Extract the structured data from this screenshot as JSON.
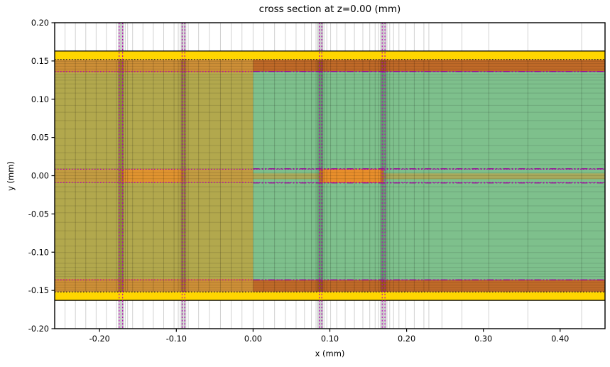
{
  "title": "cross section at z=0.00 (mm)",
  "chart_data": {
    "type": "heatmap",
    "title": "cross section at z=0.00 (mm)",
    "xlabel": "x (mm)",
    "ylabel": "y (mm)",
    "xlim": [
      -0.2585,
      0.4585
    ],
    "ylim": [
      -0.2,
      0.2
    ],
    "grid": "graded mesh lines",
    "legend": "none",
    "xticks": {
      "values": [
        -0.2,
        -0.1,
        0.0,
        0.1,
        0.2,
        0.3,
        0.4
      ],
      "labels": [
        "-0.20",
        "-0.10",
        "0.00",
        "0.10",
        "0.20",
        "0.30",
        "0.40"
      ]
    },
    "yticks": {
      "values": [
        0.2,
        0.15,
        0.1,
        0.05,
        0.0,
        -0.05,
        -0.1,
        -0.15,
        -0.2
      ],
      "labels": [
        "0.20",
        "0.15",
        "0.10",
        "0.05",
        "0.00",
        "-0.05",
        "-0.10",
        "-0.15",
        "-0.20"
      ]
    },
    "colors": {
      "yellow_layer": "#ffd600",
      "olive_dielectric": "#b2a84d",
      "green_dielectric": "#7ec08c",
      "orange_band_left": "#cd8f37",
      "orange_band_right": "#c06a28",
      "trace_orange": "#e5912d",
      "olive_sheet": "#a8a95c",
      "magenta_dotted": "#b400b4",
      "magenta_dashdot": "#990099",
      "mesh_gray": "rgba(0,0,0,0.18)",
      "mesh_h": "rgba(0,0,0,0.12)",
      "shade": "rgba(0,0,0,0.12)"
    },
    "regions": [
      {
        "name": "dielectric-left-olive",
        "x0": -0.2585,
        "x1": 0.0,
        "y0": -0.152,
        "y1": 0.152,
        "color": "#b2a84d"
      },
      {
        "name": "dielectric-right-green",
        "x0": 0.0,
        "x1": 0.4585,
        "y0": -0.152,
        "y1": 0.152,
        "color": "#7ec08c"
      },
      {
        "name": "top-band-left-orange",
        "x0": -0.2585,
        "x1": 0.0,
        "y0": 0.135,
        "y1": 0.152,
        "color": "#cd8f37"
      },
      {
        "name": "top-band-right-orange",
        "x0": 0.0,
        "x1": 0.4585,
        "y0": 0.1362,
        "y1": 0.152,
        "color": "#c06a28"
      },
      {
        "name": "bottom-band-left-orange",
        "x0": -0.2585,
        "x1": 0.0,
        "y0": -0.152,
        "y1": -0.135,
        "color": "#cd8f37"
      },
      {
        "name": "bottom-band-right-orange",
        "x0": 0.0,
        "x1": 0.4585,
        "y0": -0.152,
        "y1": -0.1362,
        "color": "#c06a28"
      },
      {
        "name": "center-band-left-tint",
        "x0": -0.2585,
        "x1": 0.0,
        "y0": -0.009,
        "y1": 0.0085,
        "color": "#c29b41"
      },
      {
        "name": "trace-left",
        "x0": -0.1722,
        "x1": -0.0907,
        "y0": -0.009,
        "y1": 0.0085,
        "color": "#e0932f"
      },
      {
        "name": "sheet-right-olive",
        "x0": 0.0,
        "x1": 0.4585,
        "y0": -0.0045,
        "y1": 0.003,
        "color": "#a8a95c"
      },
      {
        "name": "trace-right",
        "x0": 0.0862,
        "x1": 0.17,
        "y0": -0.0095,
        "y1": 0.009,
        "color": "#e88e2b"
      }
    ],
    "yellow_bands": [
      {
        "name": "yellow-layer-top",
        "x0": -0.2585,
        "x1": 0.4585,
        "y0": 0.152,
        "y1": 0.163,
        "color": "#ffd600"
      },
      {
        "name": "yellow-layer-bottom",
        "x0": -0.2585,
        "x1": 0.4585,
        "y0": -0.163,
        "y1": -0.152,
        "color": "#ffd600"
      }
    ],
    "shade_bands_x": [
      {
        "center": -0.1722,
        "width": 0.0075
      },
      {
        "center": -0.0907,
        "width": 0.006
      },
      {
        "center": 0.0878,
        "width": 0.0075
      },
      {
        "center": 0.17,
        "width": 0.0075
      }
    ],
    "mesh_x": [
      -0.245,
      -0.2315,
      -0.218,
      -0.2045,
      -0.191,
      -0.178,
      -0.1745,
      -0.1725,
      -0.1705,
      -0.1685,
      -0.1665,
      -0.1635,
      -0.157,
      -0.1435,
      -0.13,
      -0.1165,
      -0.103,
      -0.0975,
      -0.095,
      -0.093,
      -0.0915,
      -0.0895,
      -0.0875,
      -0.0845,
      -0.071,
      -0.057,
      -0.0425,
      -0.0285,
      -0.0145,
      0.0,
      0.014,
      0.028,
      0.042,
      0.056,
      0.067,
      0.076,
      0.082,
      0.0845,
      0.0865,
      0.0885,
      0.0905,
      0.0925,
      0.096,
      0.101,
      0.109,
      0.12,
      0.132,
      0.143,
      0.152,
      0.159,
      0.1635,
      0.166,
      0.168,
      0.17,
      0.172,
      0.1745,
      0.178,
      0.183,
      0.19,
      0.199,
      0.21,
      0.2225,
      0.229,
      0.246,
      0.272,
      0.307,
      0.358,
      0.428
    ],
    "mesh_y": [
      0.1495,
      0.1465,
      0.143,
      0.1395,
      0.1365,
      0.132,
      0.1285,
      0.125,
      0.12,
      0.1145,
      0.108,
      0.1005,
      0.092,
      0.083,
      0.072,
      0.061,
      0.0485,
      0.0395,
      0.03,
      0.021,
      0.0145,
      0.009,
      0.004,
      0.0,
      -0.004,
      -0.009,
      -0.0145,
      -0.021,
      -0.03,
      -0.0395,
      -0.0485,
      -0.061,
      -0.072,
      -0.083,
      -0.092,
      -0.1005,
      -0.108,
      -0.1145,
      -0.12,
      -0.125,
      -0.1285,
      -0.132,
      -0.1365,
      -0.1395,
      -0.143,
      -0.1465,
      -0.1495
    ],
    "special_h_lines": [
      {
        "name": "box-top-edge",
        "y": 0.163,
        "x0": -0.2585,
        "x1": 0.4585,
        "style": "solid",
        "color": "#000000",
        "w": 1.2
      },
      {
        "name": "box-bottom-edge",
        "y": -0.163,
        "x0": -0.2585,
        "x1": 0.4585,
        "style": "solid",
        "color": "#000000",
        "w": 1.2
      },
      {
        "name": "metal-top-edge",
        "y": 0.152,
        "x0": -0.2585,
        "x1": 0.4585,
        "style": "dotted",
        "color": "#1a1a1a",
        "w": 1.3
      },
      {
        "name": "metal-bottom-edge",
        "y": -0.152,
        "x0": -0.2585,
        "x1": 0.4585,
        "style": "dotted",
        "color": "#1a1a1a",
        "w": 1.3
      },
      {
        "name": "substrate-top-dotted",
        "y": 0.1362,
        "x0": -0.2585,
        "x1": 0.4585,
        "style": "dotted",
        "color": "#b400b4",
        "w": 1.3
      },
      {
        "name": "substrate-bot-dotted",
        "y": -0.1362,
        "x0": -0.2585,
        "x1": 0.4585,
        "style": "dotted",
        "color": "#b400b4",
        "w": 1.3
      },
      {
        "name": "substrate-top-dashdot",
        "y": 0.1362,
        "x0": 0.0,
        "x1": 0.4585,
        "style": "dashdot",
        "color": "#990099",
        "w": 1.3
      },
      {
        "name": "substrate-bot-dashdot",
        "y": -0.1362,
        "x0": 0.0,
        "x1": 0.4585,
        "style": "dashdot",
        "color": "#990099",
        "w": 1.3
      },
      {
        "name": "trace-top-dotted",
        "y": 0.0085,
        "x0": -0.2585,
        "x1": 0.4585,
        "style": "dotted",
        "color": "#b400b4",
        "w": 1.3
      },
      {
        "name": "trace-bot-dotted",
        "y": -0.009,
        "x0": -0.2585,
        "x1": 0.4585,
        "style": "dotted",
        "color": "#b400b4",
        "w": 1.3
      },
      {
        "name": "trace-top-dashdot",
        "y": 0.009,
        "x0": 0.0,
        "x1": 0.4585,
        "style": "dashdot",
        "color": "#990099",
        "w": 1.3
      },
      {
        "name": "trace-bot-dashdot",
        "y": -0.0095,
        "x0": 0.0,
        "x1": 0.4585,
        "style": "dashdot",
        "color": "#990099",
        "w": 1.3
      }
    ],
    "special_v_lines": [
      {
        "name": "probe-line",
        "x": -0.1745
      },
      {
        "name": "probe-line",
        "x": -0.17
      },
      {
        "name": "probe-line",
        "x": -0.0925
      },
      {
        "name": "probe-line",
        "x": -0.089
      },
      {
        "name": "probe-line",
        "x": 0.0862
      },
      {
        "name": "probe-line",
        "x": 0.0895
      },
      {
        "name": "probe-line",
        "x": 0.1682
      },
      {
        "name": "probe-line",
        "x": 0.1718
      }
    ]
  }
}
